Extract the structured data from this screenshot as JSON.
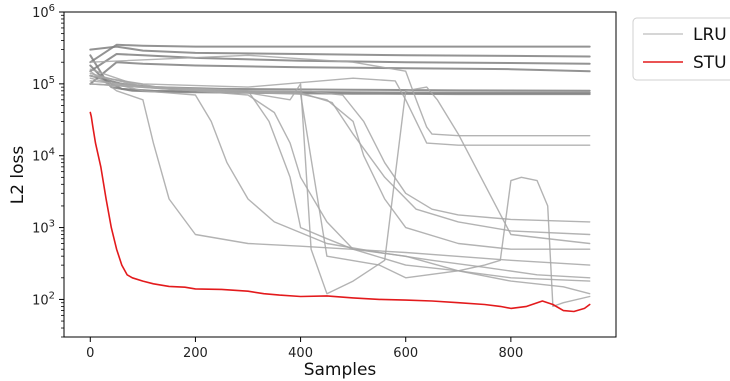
{
  "chart_data": {
    "type": "line",
    "title": "",
    "xlabel": "Samples",
    "ylabel": "L2 loss",
    "yscale": "log",
    "xlim": [
      -50,
      1000
    ],
    "ylim": [
      30,
      1000000
    ],
    "x_ticks": [
      0,
      200,
      400,
      600,
      800
    ],
    "y_ticks": [
      {
        "value": 100,
        "base": "10",
        "exp": "2"
      },
      {
        "value": 1000,
        "base": "10",
        "exp": "3"
      },
      {
        "value": 10000,
        "base": "10",
        "exp": "4"
      },
      {
        "value": 100000,
        "base": "10",
        "exp": "5"
      },
      {
        "value": 1000000,
        "base": "10",
        "exp": "6"
      }
    ],
    "grid": false,
    "legend": {
      "position": "outside-right",
      "entries": [
        {
          "label": "LRU",
          "color": "#c8c8c8"
        },
        {
          "label": "STU",
          "color": "#e31a1c"
        }
      ]
    },
    "series": [
      {
        "name": "STU",
        "color": "#e31a1c",
        "x": [
          0,
          2,
          5,
          10,
          20,
          30,
          40,
          50,
          60,
          70,
          80,
          100,
          120,
          150,
          180,
          200,
          250,
          300,
          330,
          360,
          400,
          450,
          500,
          550,
          600,
          650,
          700,
          750,
          780,
          800,
          830,
          860,
          880,
          900,
          920,
          940,
          950
        ],
        "y": [
          40000,
          35000,
          25000,
          15000,
          7000,
          2500,
          1000,
          500,
          300,
          220,
          200,
          180,
          165,
          152,
          148,
          140,
          138,
          130,
          120,
          115,
          110,
          112,
          105,
          100,
          98,
          95,
          90,
          85,
          80,
          75,
          80,
          95,
          85,
          70,
          68,
          75,
          85
        ]
      },
      {
        "name": "",
        "color": "#808080",
        "x": [
          0,
          50,
          100,
          200,
          400,
          600,
          800,
          950
        ],
        "y": [
          200000,
          350000,
          340000,
          330000,
          330000,
          330000,
          330000,
          330000
        ]
      },
      {
        "name": "",
        "color": "#808080",
        "x": [
          0,
          50,
          100,
          200,
          400,
          600,
          800,
          950
        ],
        "y": [
          300000,
          330000,
          290000,
          270000,
          260000,
          250000,
          245000,
          240000
        ]
      },
      {
        "name": "",
        "color": "#808080",
        "x": [
          0,
          50,
          100,
          200,
          400,
          600,
          800,
          950
        ],
        "y": [
          150000,
          260000,
          250000,
          230000,
          210000,
          200000,
          195000,
          190000
        ]
      },
      {
        "name": "",
        "color": "#808080",
        "x": [
          0,
          50,
          100,
          200,
          400,
          600,
          800,
          950
        ],
        "y": [
          100000,
          200000,
          190000,
          180000,
          170000,
          165000,
          160000,
          150000
        ]
      },
      {
        "name": "",
        "color": "#808080",
        "x": [
          0,
          40,
          80,
          150,
          300,
          500,
          700,
          950
        ],
        "y": [
          180000,
          90000,
          80000,
          77000,
          75000,
          73000,
          72000,
          72000
        ]
      },
      {
        "name": "",
        "color": "#808080",
        "x": [
          0,
          30,
          60,
          120,
          300,
          500,
          700,
          950
        ],
        "y": [
          250000,
          110000,
          85000,
          80000,
          78000,
          76000,
          75000,
          75000
        ]
      },
      {
        "name": "",
        "color": "#808080",
        "x": [
          0,
          60,
          120,
          250,
          500,
          700,
          950
        ],
        "y": [
          130000,
          100000,
          90000,
          85000,
          83000,
          81000,
          80000
        ]
      },
      {
        "name": "",
        "color": "#a6a6a6",
        "x": [
          0,
          50,
          100,
          120,
          150,
          200,
          300,
          400,
          600,
          800,
          950
        ],
        "y": [
          150000,
          80000,
          60000,
          15000,
          2500,
          800,
          600,
          550,
          450,
          350,
          300
        ]
      },
      {
        "name": "",
        "color": "#a6a6a6",
        "x": [
          0,
          100,
          200,
          230,
          260,
          300,
          350,
          450,
          550,
          650,
          750,
          850,
          950
        ],
        "y": [
          120000,
          80000,
          70000,
          30000,
          8000,
          2500,
          1200,
          600,
          450,
          350,
          280,
          220,
          200
        ]
      },
      {
        "name": "",
        "color": "#a6a6a6",
        "x": [
          0,
          100,
          200,
          300,
          350,
          380,
          400,
          450,
          500,
          600,
          700,
          800,
          950
        ],
        "y": [
          140000,
          90000,
          80000,
          70000,
          40000,
          15000,
          5000,
          1200,
          500,
          300,
          250,
          200,
          180
        ]
      },
      {
        "name": "",
        "color": "#a6a6a6",
        "x": [
          0,
          100,
          200,
          300,
          400,
          450,
          500,
          520,
          560,
          600,
          700,
          800,
          950
        ],
        "y": [
          160000,
          90000,
          80000,
          75000,
          72000,
          60000,
          30000,
          10000,
          2500,
          1000,
          600,
          500,
          500
        ]
      },
      {
        "name": "",
        "color": "#a6a6a6",
        "x": [
          0,
          150,
          300,
          420,
          480,
          520,
          560,
          600,
          650,
          700,
          800,
          950
        ],
        "y": [
          110000,
          85000,
          80000,
          78000,
          70000,
          30000,
          8000,
          3000,
          1800,
          1500,
          1300,
          1200
        ]
      },
      {
        "name": "",
        "color": "#a6a6a6",
        "x": [
          0,
          150,
          300,
          400,
          460,
          500,
          560,
          620,
          700,
          800,
          950
        ],
        "y": [
          130000,
          85000,
          80000,
          75000,
          55000,
          20000,
          5000,
          1800,
          1200,
          900,
          800
        ]
      },
      {
        "name": "",
        "color": "#a6a6a6",
        "x": [
          0,
          300,
          500,
          600,
          620,
          640,
          650,
          700,
          800,
          950
        ],
        "y": [
          200000,
          250000,
          200000,
          150000,
          60000,
          25000,
          20000,
          19000,
          19000,
          19000
        ]
      },
      {
        "name": "",
        "color": "#a6a6a6",
        "x": [
          0,
          100,
          300,
          500,
          580,
          600,
          620,
          640,
          700,
          800,
          950
        ],
        "y": [
          130000,
          100000,
          90000,
          120000,
          110000,
          60000,
          30000,
          15000,
          14000,
          14000,
          14000
        ]
      },
      {
        "name": "",
        "color": "#a6a6a6",
        "x": [
          0,
          200,
          300,
          380,
          400,
          420,
          450,
          500,
          560,
          600,
          640,
          660,
          700,
          800,
          950
        ],
        "y": [
          100000,
          80000,
          75000,
          60000,
          100000,
          500,
          120,
          180,
          350,
          80000,
          90000,
          60000,
          20000,
          800,
          600
        ]
      },
      {
        "name": "",
        "color": "#a6a6a6",
        "x": [
          0,
          200,
          350,
          400,
          450,
          550,
          600,
          700,
          750,
          780,
          800,
          820,
          850,
          870,
          880,
          900,
          950
        ],
        "y": [
          100000,
          80000,
          75000,
          72000,
          400,
          300,
          200,
          250,
          300,
          350,
          4500,
          5000,
          4500,
          2000,
          80,
          90,
          110
        ]
      },
      {
        "name": "",
        "color": "#a6a6a6",
        "x": [
          0,
          300,
          340,
          380,
          400,
          450,
          500,
          600,
          700,
          800,
          900,
          950
        ],
        "y": [
          100000,
          80000,
          30000,
          5000,
          1000,
          700,
          500,
          400,
          250,
          180,
          150,
          120
        ]
      }
    ]
  }
}
